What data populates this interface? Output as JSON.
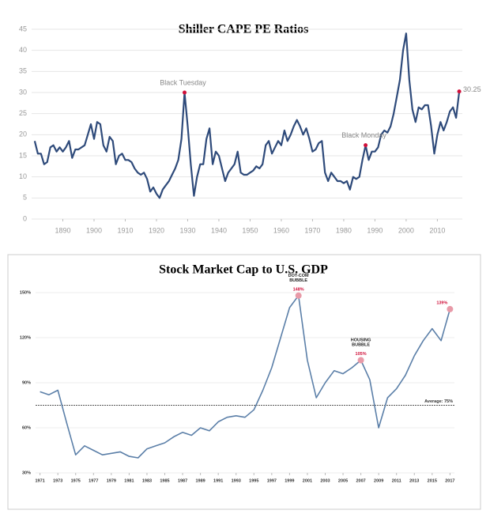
{
  "chart_data": [
    {
      "type": "line",
      "title": "Shiller CAPE PE Ratios",
      "color": "#2e4a7a",
      "x": [
        1881,
        1882,
        1883,
        1884,
        1885,
        1886,
        1887,
        1888,
        1889,
        1890,
        1891,
        1892,
        1893,
        1894,
        1895,
        1896,
        1897,
        1898,
        1899,
        1900,
        1901,
        1902,
        1903,
        1904,
        1905,
        1906,
        1907,
        1908,
        1909,
        1910,
        1911,
        1912,
        1913,
        1914,
        1915,
        1916,
        1917,
        1918,
        1919,
        1920,
        1921,
        1922,
        1923,
        1924,
        1925,
        1926,
        1927,
        1928,
        1929,
        1930,
        1931,
        1932,
        1933,
        1934,
        1935,
        1936,
        1937,
        1938,
        1939,
        1940,
        1941,
        1942,
        1943,
        1944,
        1945,
        1946,
        1947,
        1948,
        1949,
        1950,
        1951,
        1952,
        1953,
        1954,
        1955,
        1956,
        1957,
        1958,
        1959,
        1960,
        1961,
        1962,
        1963,
        1964,
        1965,
        1966,
        1967,
        1968,
        1969,
        1970,
        1971,
        1972,
        1973,
        1974,
        1975,
        1976,
        1977,
        1978,
        1979,
        1980,
        1981,
        1982,
        1983,
        1984,
        1985,
        1986,
        1987,
        1988,
        1989,
        1990,
        1991,
        1992,
        1993,
        1994,
        1995,
        1996,
        1997,
        1998,
        1999,
        2000,
        2001,
        2002,
        2003,
        2004,
        2005,
        2006,
        2007,
        2008,
        2009,
        2010,
        2011,
        2012,
        2013,
        2014,
        2015,
        2016,
        2017
      ],
      "values": [
        18.5,
        15.5,
        15.5,
        13,
        13.5,
        17,
        17.5,
        16,
        17,
        16,
        17,
        18.5,
        14.5,
        16.5,
        16.5,
        17,
        17.5,
        20,
        22.5,
        19,
        23,
        22.5,
        17.5,
        16,
        19.5,
        18.5,
        13,
        15,
        15.5,
        14,
        14,
        13.5,
        12,
        11,
        10.5,
        11,
        9.5,
        6.5,
        7.5,
        6,
        5,
        7,
        8,
        9,
        10.5,
        12,
        14,
        19,
        30,
        22,
        13,
        5.5,
        10,
        13,
        13,
        19,
        21.5,
        13,
        16,
        15,
        12,
        9,
        11,
        12,
        13,
        16,
        11,
        10.5,
        10.5,
        11,
        11.5,
        12.5,
        12,
        13,
        17.5,
        18.5,
        15.5,
        17,
        18.5,
        17.5,
        21,
        18.5,
        20,
        22,
        23.5,
        22,
        20,
        21.5,
        19,
        16,
        16.5,
        18,
        18.5,
        11,
        9,
        11,
        10,
        9,
        9,
        8.5,
        9,
        7,
        10,
        9.5,
        10,
        14,
        17.5,
        14,
        16,
        16,
        17,
        20,
        21,
        20.5,
        22,
        25,
        29,
        33,
        40,
        44,
        33,
        26,
        23,
        26.5,
        26,
        27,
        27,
        22,
        15.5,
        20,
        23,
        21,
        23,
        25.5,
        26.5,
        24,
        30.25
      ],
      "highlights": {
        "x": [
          1929,
          1987,
          2017
        ],
        "values": [
          30,
          17.5,
          30.25
        ],
        "color": "#d0103a"
      },
      "annotations": [
        "Black Tuesday",
        "Black Monday"
      ],
      "xlim": [
        1880,
        2018
      ],
      "xticks": [
        1890,
        1900,
        1910,
        1920,
        1930,
        1940,
        1950,
        1960,
        1970,
        1980,
        1990,
        2000,
        2010
      ],
      "ylim": [
        0,
        45
      ],
      "yticks": [
        0,
        5,
        10,
        15,
        20,
        25,
        30,
        35,
        40,
        45
      ],
      "grid": true
    },
    {
      "type": "line",
      "title": "Stock Market Cap to U.S. GDP",
      "color": "#5b7fa8",
      "x": [
        1971,
        1972,
        1973,
        1974,
        1975,
        1976,
        1977,
        1978,
        1979,
        1980,
        1981,
        1982,
        1983,
        1984,
        1985,
        1986,
        1987,
        1988,
        1989,
        1990,
        1991,
        1992,
        1993,
        1994,
        1995,
        1996,
        1997,
        1998,
        1999,
        2000,
        2001,
        2002,
        2003,
        2004,
        2005,
        2006,
        2007,
        2008,
        2009,
        2010,
        2011,
        2012,
        2013,
        2014,
        2015,
        2016,
        2017
      ],
      "values": [
        84,
        82,
        85,
        63,
        42,
        48,
        45,
        42,
        43,
        44,
        41,
        40,
        46,
        48,
        50,
        54,
        57,
        55,
        60,
        58,
        64,
        67,
        68,
        67,
        72,
        85,
        100,
        120,
        140,
        148,
        105,
        80,
        90,
        98,
        96,
        100,
        105,
        92,
        60,
        80,
        86,
        95,
        108,
        118,
        126,
        118,
        139
      ],
      "highlights": {
        "x": [
          2000,
          2007,
          2017
        ],
        "values": [
          148,
          105,
          139
        ],
        "value_labels": [
          "148%",
          "105%",
          "139%"
        ],
        "color": "#e89aa8"
      },
      "annotations": [
        "DOT-COM BUBBLE",
        "HOUSING BUBBLE"
      ],
      "reference_line": {
        "value": 75,
        "label": "Average: 75%"
      },
      "xlim": [
        1970.5,
        2017.5
      ],
      "xticks": [
        1971,
        1973,
        1975,
        1977,
        1979,
        1981,
        1983,
        1985,
        1987,
        1989,
        1991,
        1993,
        1995,
        1997,
        1999,
        2001,
        2003,
        2005,
        2007,
        2009,
        2011,
        2013,
        2015,
        2017
      ],
      "ylim": [
        30,
        150
      ],
      "yticks": [
        {
          "value": 30,
          "label": "30%"
        },
        {
          "value": 60,
          "label": "60%"
        },
        {
          "value": 90,
          "label": "90%"
        },
        {
          "value": 120,
          "label": "120%"
        },
        {
          "value": 150,
          "label": "150%"
        }
      ],
      "grid": true
    }
  ]
}
